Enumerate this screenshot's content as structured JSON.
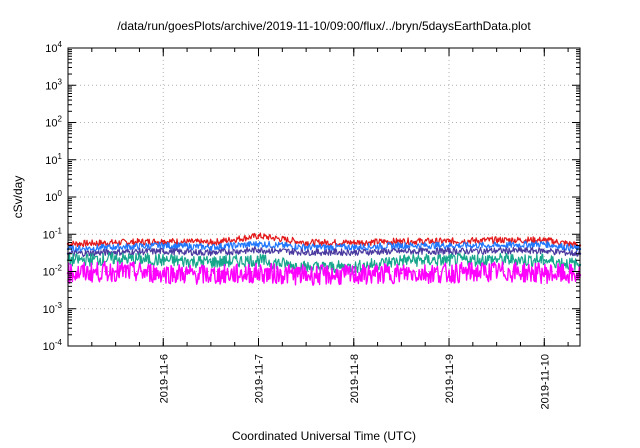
{
  "chart_data": {
    "type": "line",
    "title": "/data/run/goesPlots/archive/2019-11-10/09:00/flux/../bryn/5daysEarthData.plot",
    "xlabel": "Coordinated Universal Time (UTC)",
    "ylabel": "cSv/day",
    "y_scale": "log",
    "ylim": [
      0.0001,
      10000
    ],
    "xlim": [
      "2019-11-05T00:00",
      "2019-11-10T09:00"
    ],
    "x_ticks": [
      "2019-11-6",
      "2019-11-7",
      "2019-11-8",
      "2019-11-9",
      "2019-11-10"
    ],
    "y_ticks": [
      {
        "base": "10",
        "exp": "4"
      },
      {
        "base": "10",
        "exp": "3"
      },
      {
        "base": "10",
        "exp": "2"
      },
      {
        "base": "10",
        "exp": "1"
      },
      {
        "base": "10",
        "exp": "0"
      },
      {
        "base": "10",
        "exp": "-1"
      },
      {
        "base": "10",
        "exp": "-2"
      },
      {
        "base": "10",
        "exp": "-3"
      },
      {
        "base": "10",
        "exp": "-4"
      }
    ],
    "grid": true,
    "series": [
      {
        "color": "#e31a1c",
        "values": [
          {
            "x": "2019-11-05T00:00",
            "y": 0.055
          },
          {
            "x": "2019-11-05T12:00",
            "y": 0.06
          },
          {
            "x": "2019-11-06T00:00",
            "y": 0.065
          },
          {
            "x": "2019-11-06T12:00",
            "y": 0.06
          },
          {
            "x": "2019-11-07T00:00",
            "y": 0.09
          },
          {
            "x": "2019-11-07T12:00",
            "y": 0.06
          },
          {
            "x": "2019-11-08T00:00",
            "y": 0.06
          },
          {
            "x": "2019-11-08T12:00",
            "y": 0.065
          },
          {
            "x": "2019-11-09T00:00",
            "y": 0.065
          },
          {
            "x": "2019-11-09T12:00",
            "y": 0.07
          },
          {
            "x": "2019-11-10T00:00",
            "y": 0.07
          },
          {
            "x": "2019-11-10T09:00",
            "y": 0.05
          }
        ]
      },
      {
        "color": "#1f77ff",
        "values": [
          {
            "x": "2019-11-05T00:00",
            "y": 0.04
          },
          {
            "x": "2019-11-05T12:00",
            "y": 0.045
          },
          {
            "x": "2019-11-06T00:00",
            "y": 0.05
          },
          {
            "x": "2019-11-06T12:00",
            "y": 0.045
          },
          {
            "x": "2019-11-07T00:00",
            "y": 0.055
          },
          {
            "x": "2019-11-07T12:00",
            "y": 0.045
          },
          {
            "x": "2019-11-08T00:00",
            "y": 0.045
          },
          {
            "x": "2019-11-08T12:00",
            "y": 0.05
          },
          {
            "x": "2019-11-09T00:00",
            "y": 0.05
          },
          {
            "x": "2019-11-09T12:00",
            "y": 0.05
          },
          {
            "x": "2019-11-10T00:00",
            "y": 0.055
          },
          {
            "x": "2019-11-10T09:00",
            "y": 0.04
          }
        ]
      },
      {
        "color": "#4a3aa0",
        "values": [
          {
            "x": "2019-11-05T00:00",
            "y": 0.03
          },
          {
            "x": "2019-11-05T12:00",
            "y": 0.033
          },
          {
            "x": "2019-11-06T00:00",
            "y": 0.035
          },
          {
            "x": "2019-11-06T12:00",
            "y": 0.032
          },
          {
            "x": "2019-11-07T00:00",
            "y": 0.038
          },
          {
            "x": "2019-11-07T12:00",
            "y": 0.033
          },
          {
            "x": "2019-11-08T00:00",
            "y": 0.033
          },
          {
            "x": "2019-11-08T12:00",
            "y": 0.035
          },
          {
            "x": "2019-11-09T00:00",
            "y": 0.035
          },
          {
            "x": "2019-11-09T12:00",
            "y": 0.036
          },
          {
            "x": "2019-11-10T00:00",
            "y": 0.036
          },
          {
            "x": "2019-11-10T09:00",
            "y": 0.03
          }
        ]
      },
      {
        "color": "#17a58c",
        "values": [
          {
            "x": "2019-11-05T00:00",
            "y": 0.02
          },
          {
            "x": "2019-11-05T12:00",
            "y": 0.022
          },
          {
            "x": "2019-11-06T00:00",
            "y": 0.02
          },
          {
            "x": "2019-11-06T12:00",
            "y": 0.018
          },
          {
            "x": "2019-11-07T00:00",
            "y": 0.02
          },
          {
            "x": "2019-11-07T12:00",
            "y": 0.013
          },
          {
            "x": "2019-11-08T00:00",
            "y": 0.013
          },
          {
            "x": "2019-11-08T12:00",
            "y": 0.02
          },
          {
            "x": "2019-11-09T00:00",
            "y": 0.02
          },
          {
            "x": "2019-11-09T12:00",
            "y": 0.021
          },
          {
            "x": "2019-11-10T00:00",
            "y": 0.02
          },
          {
            "x": "2019-11-10T09:00",
            "y": 0.015
          }
        ]
      },
      {
        "color": "#ff00ff",
        "values": [
          {
            "x": "2019-11-05T00:00",
            "y": 0.009
          },
          {
            "x": "2019-11-05T12:00",
            "y": 0.01
          },
          {
            "x": "2019-11-06T00:00",
            "y": 0.009
          },
          {
            "x": "2019-11-06T12:00",
            "y": 0.008
          },
          {
            "x": "2019-11-07T00:00",
            "y": 0.009
          },
          {
            "x": "2019-11-07T12:00",
            "y": 0.008
          },
          {
            "x": "2019-11-08T00:00",
            "y": 0.008
          },
          {
            "x": "2019-11-08T12:00",
            "y": 0.009
          },
          {
            "x": "2019-11-09T00:00",
            "y": 0.009
          },
          {
            "x": "2019-11-09T12:00",
            "y": 0.01
          },
          {
            "x": "2019-11-10T00:00",
            "y": 0.009
          },
          {
            "x": "2019-11-10T09:00",
            "y": 0.008
          }
        ]
      }
    ]
  }
}
